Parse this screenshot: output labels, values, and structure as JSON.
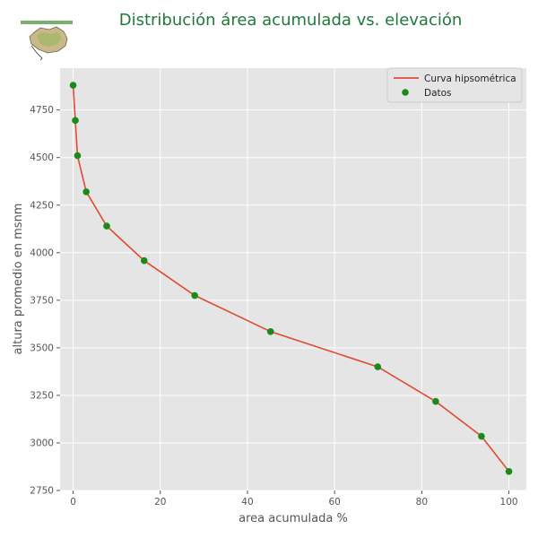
{
  "chart_data": {
    "type": "line",
    "title": "Distribución área acumulada vs. elevación",
    "xlabel": "area acumulada %",
    "ylabel": "altura promedio en msnm",
    "xlim": [
      -3,
      104
    ],
    "ylim": [
      2750,
      4970
    ],
    "xticks": [
      0,
      20,
      40,
      60,
      80,
      100
    ],
    "yticks": [
      2750,
      3000,
      3250,
      3500,
      3750,
      4000,
      4250,
      4500,
      4750
    ],
    "grid": true,
    "legend_position": "top-right",
    "series": [
      {
        "name": "Curva hipsométrica",
        "kind": "line",
        "color": "#e24a33",
        "x": [
          0,
          0.5,
          1.0,
          3.0,
          7.7,
          16.3,
          27.9,
          45.3,
          69.9,
          83.2,
          93.7,
          100
        ],
        "y": [
          4880,
          4695,
          4510,
          4320,
          4140,
          3958,
          3775,
          3585,
          3400,
          3218,
          3035,
          2850
        ]
      },
      {
        "name": "Datos",
        "kind": "scatter",
        "color": "#1a8a1a",
        "x": [
          0,
          0.5,
          1.0,
          3.0,
          7.7,
          16.3,
          27.9,
          45.3,
          69.9,
          83.2,
          93.7,
          100
        ],
        "y": [
          4880,
          4695,
          4510,
          4320,
          4140,
          3958,
          3775,
          3585,
          3400,
          3218,
          3035,
          2850
        ]
      }
    ]
  }
}
